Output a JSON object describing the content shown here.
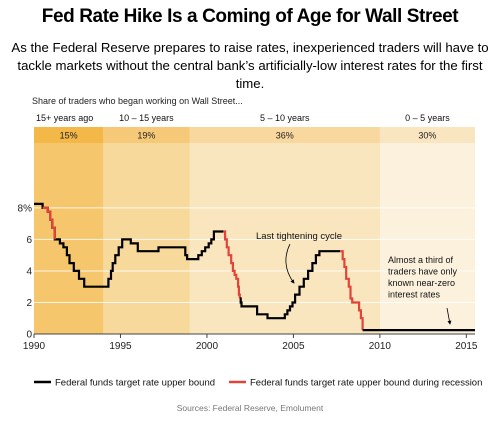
{
  "title": "Fed Rate Hike Is a Coming of Age for Wall Street",
  "subtitle": "As the Federal Reserve prepares to raise rates, inexperienced traders will have to tackle markets without the central bank’s artificially-low interest rates for the first time.",
  "source": "Sources: Federal Reserve, Emolument",
  "colors": {
    "rate_line": "#000000",
    "recession_line": "#e2443a",
    "band_1": "#f5c66b",
    "band_2": "#f8d99c",
    "band_3": "#fae6be",
    "band_4": "#fcf1dc",
    "header_1": "#f3b848",
    "header_2": "#f6c978",
    "header_3": "#f8d89e",
    "header_4": "#fae5c1"
  },
  "chart_data": {
    "type": "line",
    "share_heading": "Share of traders who began working on Wall Street...",
    "experience_groups": [
      {
        "label": "15+ years ago",
        "share": "15%",
        "x_start": 1990,
        "x_end": 1994
      },
      {
        "label": "10 – 15 years",
        "share": "19%",
        "x_start": 1994,
        "x_end": 1999
      },
      {
        "label": "5 – 10 years",
        "share": "36%",
        "x_start": 1999,
        "x_end": 2010
      },
      {
        "label": "0 – 5 years",
        "share": "30%",
        "x_start": 2010,
        "x_end": 2015.5
      }
    ],
    "x_ticks": [
      "1990",
      "1995",
      "2000",
      "2005",
      "2010",
      "2015"
    ],
    "x_tick_values": [
      1990,
      1995,
      2000,
      2005,
      2010,
      2015
    ],
    "xlim": [
      1990,
      2015.5
    ],
    "y_ticks": [
      "0",
      "2",
      "4",
      "6",
      "8%"
    ],
    "y_tick_values": [
      0,
      2,
      4,
      6,
      8
    ],
    "ylim": [
      0,
      8.5
    ],
    "grid": "horizontal",
    "series": [
      {
        "name": "Federal funds target rate upper bound",
        "points": [
          [
            1990.0,
            8.25
          ],
          [
            1990.5,
            8.0
          ],
          [
            1990.8,
            7.75
          ],
          [
            1990.95,
            7.25
          ],
          [
            1991.05,
            6.75
          ],
          [
            1991.2,
            6.0
          ],
          [
            1991.5,
            5.75
          ],
          [
            1991.7,
            5.5
          ],
          [
            1991.9,
            5.0
          ],
          [
            1992.05,
            4.5
          ],
          [
            1992.3,
            4.0
          ],
          [
            1992.6,
            3.5
          ],
          [
            1992.9,
            3.0
          ],
          [
            1994.1,
            3.0
          ],
          [
            1994.3,
            3.5
          ],
          [
            1994.45,
            4.0
          ],
          [
            1994.55,
            4.5
          ],
          [
            1994.7,
            5.0
          ],
          [
            1994.9,
            5.5
          ],
          [
            1995.1,
            6.0
          ],
          [
            1995.6,
            5.75
          ],
          [
            1996.0,
            5.25
          ],
          [
            1997.2,
            5.5
          ],
          [
            1998.75,
            5.0
          ],
          [
            1998.85,
            4.75
          ],
          [
            1999.5,
            5.0
          ],
          [
            1999.7,
            5.25
          ],
          [
            1999.9,
            5.5
          ],
          [
            2000.1,
            5.75
          ],
          [
            2000.25,
            6.0
          ],
          [
            2000.4,
            6.5
          ],
          [
            2000.95,
            6.5
          ]
        ]
      },
      {
        "name": "Federal funds target rate upper bound during recession",
        "points": [
          [
            1990.5,
            8.0
          ],
          [
            1990.8,
            7.75
          ],
          [
            1990.95,
            7.25
          ],
          [
            1991.05,
            6.75
          ],
          [
            1991.2,
            6.0
          ]
        ]
      },
      {
        "name": "Federal funds target rate upper bound during recession",
        "points": [
          [
            2000.95,
            6.5
          ],
          [
            2001.05,
            6.0
          ],
          [
            2001.15,
            5.5
          ],
          [
            2001.25,
            5.0
          ],
          [
            2001.4,
            4.5
          ],
          [
            2001.5,
            4.0
          ],
          [
            2001.6,
            3.75
          ],
          [
            2001.7,
            3.5
          ],
          [
            2001.8,
            3.0
          ],
          [
            2001.85,
            2.5
          ],
          [
            2001.9,
            2.25
          ]
        ]
      },
      {
        "name": "Federal funds target rate upper bound",
        "points": [
          [
            2001.9,
            2.25
          ],
          [
            2001.95,
            2.0
          ],
          [
            2002.0,
            1.75
          ],
          [
            2002.9,
            1.25
          ],
          [
            2003.5,
            1.0
          ],
          [
            2004.5,
            1.25
          ],
          [
            2004.65,
            1.5
          ],
          [
            2004.8,
            1.75
          ],
          [
            2004.95,
            2.0
          ],
          [
            2005.1,
            2.5
          ],
          [
            2005.35,
            3.0
          ],
          [
            2005.6,
            3.5
          ],
          [
            2005.85,
            4.0
          ],
          [
            2006.1,
            4.5
          ],
          [
            2006.3,
            5.0
          ],
          [
            2006.5,
            5.25
          ],
          [
            2007.7,
            5.25
          ]
        ]
      },
      {
        "name": "Federal funds target rate upper bound during recession",
        "points": [
          [
            2007.7,
            5.25
          ],
          [
            2007.85,
            4.75
          ],
          [
            2007.95,
            4.25
          ],
          [
            2008.05,
            3.5
          ],
          [
            2008.2,
            3.0
          ],
          [
            2008.3,
            2.25
          ],
          [
            2008.4,
            2.0
          ],
          [
            2008.8,
            1.5
          ],
          [
            2008.9,
            1.0
          ],
          [
            2009.0,
            0.25
          ]
        ]
      },
      {
        "name": "Federal funds target rate upper bound",
        "points": [
          [
            2009.0,
            0.25
          ],
          [
            2015.5,
            0.25
          ]
        ]
      }
    ],
    "legend": [
      {
        "label": "Federal funds target rate upper bound",
        "color": "#000000"
      },
      {
        "label": "Federal funds target rate upper bound during recession",
        "color": "#e2443a"
      }
    ],
    "annotations": [
      {
        "lines": [
          "Last tightening cycle"
        ],
        "x": 2007.0,
        "y": 5.5
      },
      {
        "lines": [
          "Almost a third of",
          "traders have only",
          "known near-zero",
          "interest rates"
        ],
        "x": 2012.2,
        "y": 0.5
      }
    ]
  }
}
